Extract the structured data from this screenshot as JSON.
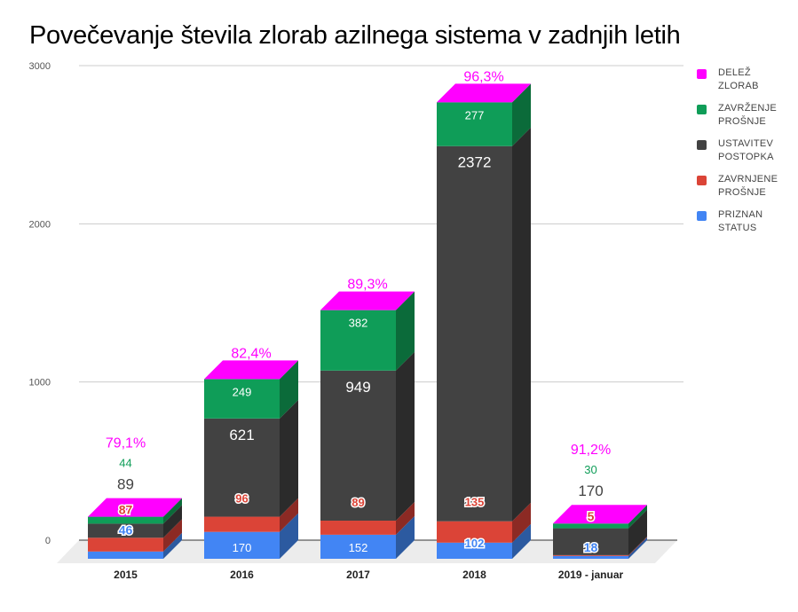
{
  "chart_data": {
    "type": "bar",
    "stacked": true,
    "three_d": true,
    "title": "Povečevanje števila zlorab azilnega sistema v zadnjih letih",
    "xlabel": "",
    "ylabel": "",
    "ylim": [
      0,
      3000
    ],
    "yticks": [
      "0",
      "1000",
      "2000",
      "3000"
    ],
    "ytick_values": [
      0,
      1000,
      2000,
      3000
    ],
    "grid": true,
    "legend_position": "right",
    "categories": [
      "2015",
      "2016",
      "2017",
      "2018",
      "2019 - januar"
    ],
    "series": [
      {
        "name": "PRIZNAN STATUS",
        "legend_lines": [
          "PRIZNAN",
          "STATUS"
        ],
        "color": "#4285f4",
        "side_color": "#2c5aa0",
        "values": [
          46,
          170,
          152,
          102,
          18
        ],
        "labels": [
          "46",
          "170",
          "152",
          "102",
          "18"
        ]
      },
      {
        "name": "ZAVRNJENE PROŠNJE",
        "legend_lines": [
          "ZAVRNJENE",
          "PROŠNJE"
        ],
        "color": "#db4437",
        "side_color": "#8c2a24",
        "values": [
          87,
          96,
          89,
          135,
          5
        ],
        "labels": [
          "87",
          "96",
          "89",
          "135",
          "5"
        ]
      },
      {
        "name": "USTAVITEV POSTOPKA",
        "legend_lines": [
          "USTAVITEV",
          "POSTOPKA"
        ],
        "color": "#424242",
        "side_color": "#2b2b2b",
        "values": [
          89,
          621,
          949,
          2372,
          170
        ],
        "labels": [
          "89",
          "621",
          "949",
          "2372",
          "170"
        ]
      },
      {
        "name": "ZAVRŽENJE PROŠNJE",
        "legend_lines": [
          "ZAVRŽENJE",
          "PROŠNJE"
        ],
        "color": "#0f9d58",
        "side_color": "#0b6b3a",
        "values": [
          44,
          249,
          382,
          277,
          30
        ],
        "labels": [
          "44",
          "249",
          "382",
          "277",
          "30"
        ]
      },
      {
        "name": "DELEŽ ZLORAB",
        "legend_lines": [
          "DELEŽ",
          "ZLORAB"
        ],
        "color": "#ff00ff",
        "side_color": "#ff00ff",
        "values": [
          79.1,
          82.4,
          89.3,
          96.3,
          91.2
        ],
        "labels": [
          "79,1%",
          "82,4%",
          "89,3%",
          "96,3%",
          "91,2%"
        ]
      }
    ]
  }
}
